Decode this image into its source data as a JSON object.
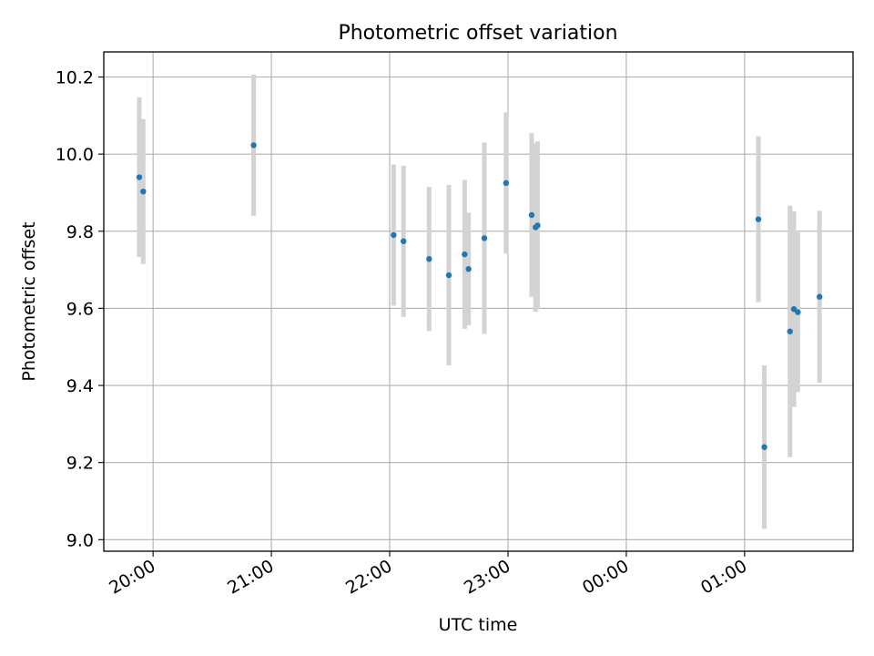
{
  "chart_data": {
    "type": "scatter",
    "title": "Photometric offset variation",
    "xlabel": "UTC time",
    "ylabel": "Photometric offset",
    "grid": true,
    "xlim": [
      "19:35",
      "01:55"
    ],
    "ylim": [
      8.97,
      10.265
    ],
    "x_ticks": [
      "20:00",
      "21:00",
      "22:00",
      "23:00",
      "00:00",
      "01:00"
    ],
    "y_ticks": [
      "9.0",
      "9.2",
      "9.4",
      "9.6",
      "9.8",
      "10.0",
      "10.2"
    ],
    "errorbar_color": "#d3d3d3",
    "point_color": "#1f77b4",
    "points": [
      {
        "x": "19:53",
        "y": 9.94,
        "err": 0.207
      },
      {
        "x": "19:55",
        "y": 9.903,
        "err": 0.188
      },
      {
        "x": "20:51",
        "y": 10.023,
        "err": 0.183
      },
      {
        "x": "22:02",
        "y": 9.79,
        "err": 0.183
      },
      {
        "x": "22:07",
        "y": 9.774,
        "err": 0.196
      },
      {
        "x": "22:20",
        "y": 9.728,
        "err": 0.187
      },
      {
        "x": "22:30",
        "y": 9.686,
        "err": 0.234
      },
      {
        "x": "22:38",
        "y": 9.74,
        "err": 0.193
      },
      {
        "x": "22:40",
        "y": 9.702,
        "err": 0.146
      },
      {
        "x": "22:48",
        "y": 9.782,
        "err": 0.248
      },
      {
        "x": "22:59",
        "y": 9.925,
        "err": 0.183
      },
      {
        "x": "23:12",
        "y": 9.842,
        "err": 0.212
      },
      {
        "x": "23:14",
        "y": 9.81,
        "err": 0.219
      },
      {
        "x": "23:15",
        "y": 9.815,
        "err": 0.218
      },
      {
        "x": "01:07",
        "y": 9.831,
        "err": 0.215
      },
      {
        "x": "01:10",
        "y": 9.24,
        "err": 0.212
      },
      {
        "x": "01:23",
        "y": 9.54,
        "err": 0.326
      },
      {
        "x": "01:25",
        "y": 9.598,
        "err": 0.254
      },
      {
        "x": "01:27",
        "y": 9.59,
        "err": 0.207
      },
      {
        "x": "01:38",
        "y": 9.63,
        "err": 0.223
      }
    ]
  }
}
